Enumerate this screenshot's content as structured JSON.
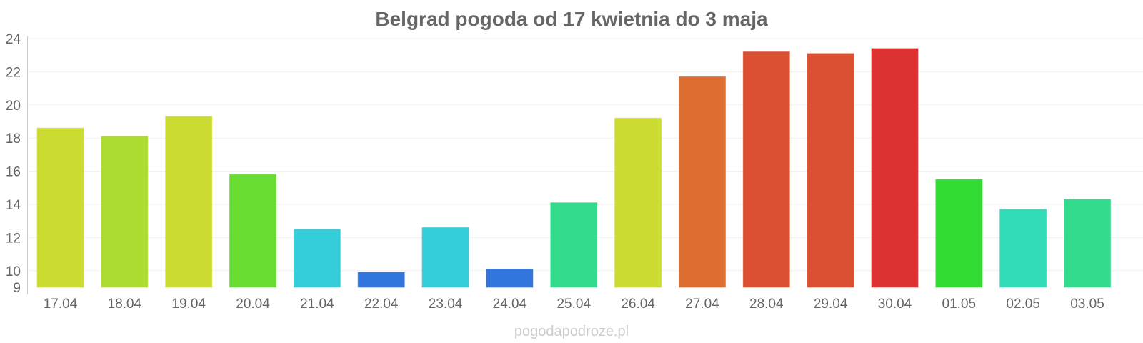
{
  "chart_data": {
    "type": "bar",
    "title": "Belgrad pogoda od 17 kwietnia do 3 maja",
    "xlabel": "",
    "ylabel": "",
    "ylim": [
      9,
      24
    ],
    "yticks": [
      9,
      10,
      12,
      14,
      16,
      18,
      20,
      22,
      24
    ],
    "grid": true,
    "categories": [
      "17.04",
      "18.04",
      "19.04",
      "20.04",
      "21.04",
      "22.04",
      "23.04",
      "24.04",
      "25.04",
      "26.04",
      "27.04",
      "28.04",
      "29.04",
      "30.04",
      "01.05",
      "02.05",
      "03.05"
    ],
    "values": [
      18.6,
      18.1,
      19.3,
      15.8,
      12.5,
      9.9,
      12.6,
      10.1,
      14.1,
      19.2,
      21.7,
      23.2,
      23.1,
      23.4,
      15.5,
      13.7,
      14.3
    ],
    "colors": [
      "#cddc32",
      "#acdc32",
      "#cddc32",
      "#69dc32",
      "#33ced9",
      "#3275dc",
      "#33ced9",
      "#3275dc",
      "#33dc8c",
      "#cddc32",
      "#dc6e32",
      "#dc5032",
      "#dc5032",
      "#dc3232",
      "#32dc32",
      "#33dcb9",
      "#33dc8c"
    ]
  },
  "watermark": "pogodapodroze.pl"
}
